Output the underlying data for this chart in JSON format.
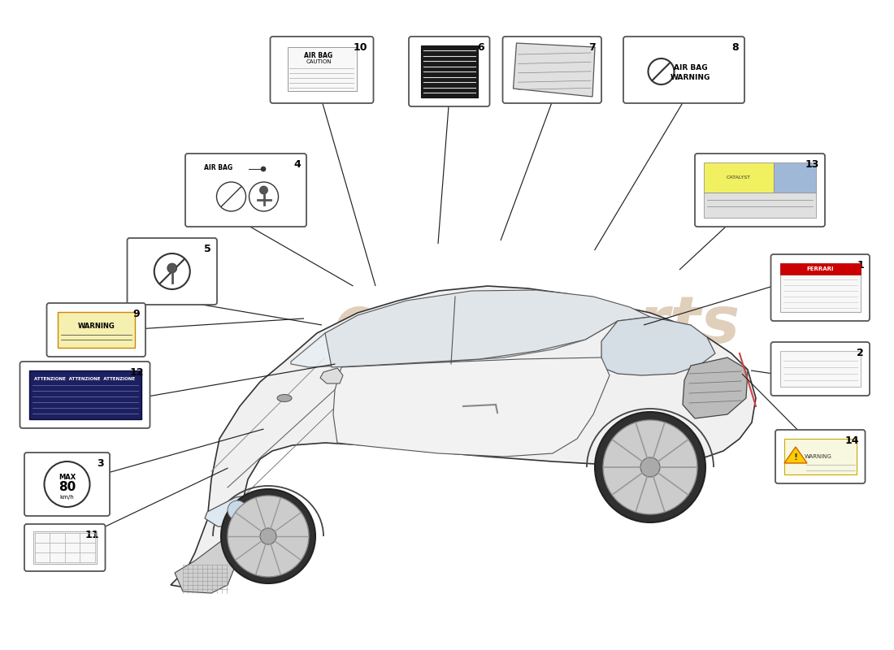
{
  "background_color": "#ffffff",
  "watermark_color": "#c8a882",
  "parts": [
    {
      "id": 1,
      "label": "1",
      "bx": 0.865,
      "by": 0.395,
      "bw": 0.105,
      "bh": 0.095,
      "content": "ferrari_doc"
    },
    {
      "id": 2,
      "label": "2",
      "bx": 0.865,
      "by": 0.53,
      "bw": 0.105,
      "bh": 0.075,
      "content": "plain_card"
    },
    {
      "id": 3,
      "label": "3",
      "bx": 0.03,
      "by": 0.7,
      "bw": 0.09,
      "bh": 0.09,
      "content": "speed_circle"
    },
    {
      "id": 4,
      "label": "4",
      "bx": 0.21,
      "by": 0.24,
      "bw": 0.13,
      "bh": 0.105,
      "content": "airbag_label"
    },
    {
      "id": 5,
      "label": "5",
      "bx": 0.145,
      "by": 0.37,
      "bw": 0.095,
      "bh": 0.095,
      "content": "circle_symbol"
    },
    {
      "id": 6,
      "label": "6",
      "bx": 0.46,
      "by": 0.06,
      "bw": 0.085,
      "bh": 0.1,
      "content": "black_label"
    },
    {
      "id": 7,
      "label": "7",
      "bx": 0.565,
      "by": 0.06,
      "bw": 0.105,
      "bh": 0.095,
      "content": "paper_sheet"
    },
    {
      "id": 8,
      "label": "8",
      "bx": 0.7,
      "by": 0.06,
      "bw": 0.13,
      "bh": 0.095,
      "content": "airbag_warning"
    },
    {
      "id": 9,
      "label": "9",
      "bx": 0.055,
      "by": 0.47,
      "bw": 0.105,
      "bh": 0.075,
      "content": "warning_label"
    },
    {
      "id": 10,
      "label": "10",
      "bx": 0.305,
      "by": 0.06,
      "bw": 0.11,
      "bh": 0.095,
      "content": "airbag_caution"
    },
    {
      "id": 11,
      "label": "11",
      "bx": 0.03,
      "by": 0.81,
      "bw": 0.085,
      "bh": 0.065,
      "content": "grid_label"
    },
    {
      "id": 12,
      "label": "12",
      "bx": 0.025,
      "by": 0.56,
      "bw": 0.14,
      "bh": 0.095,
      "content": "attention_label"
    },
    {
      "id": 13,
      "label": "13",
      "bx": 0.78,
      "by": 0.24,
      "bw": 0.14,
      "bh": 0.105,
      "content": "catalyst_label"
    },
    {
      "id": 14,
      "label": "14",
      "bx": 0.87,
      "by": 0.665,
      "bw": 0.095,
      "bh": 0.075,
      "content": "warning_strip"
    }
  ],
  "line_color": "#222222",
  "box_border_color": "#444444"
}
